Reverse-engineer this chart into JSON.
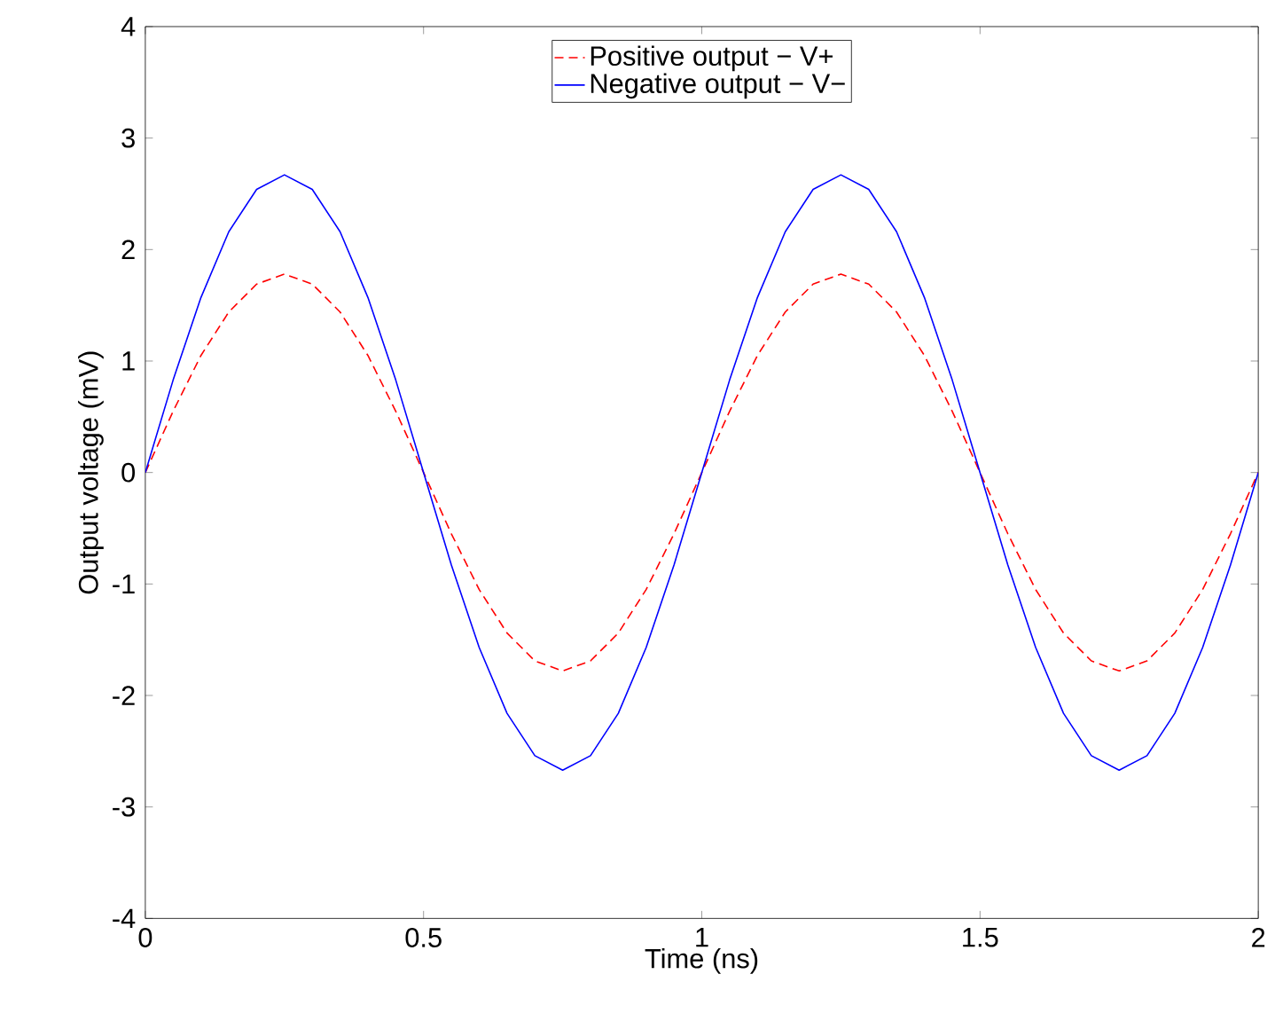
{
  "chart_data": {
    "type": "line",
    "xlabel": "Time (ns)",
    "ylabel": "Output voltage (mV)",
    "x": [
      0,
      0.05,
      0.1,
      0.15,
      0.2,
      0.25,
      0.3,
      0.35,
      0.4,
      0.45,
      0.5,
      0.55,
      0.6,
      0.65,
      0.7,
      0.75,
      0.8,
      0.85,
      0.9,
      0.95,
      1,
      1.05,
      1.1,
      1.15,
      1.2,
      1.25,
      1.3,
      1.35,
      1.4,
      1.45,
      1.5,
      1.55,
      1.6,
      1.65,
      1.7,
      1.75,
      1.8,
      1.85,
      1.9,
      1.95,
      2
    ],
    "series": [
      {
        "name": "Positive output − V+",
        "color": "#ff0000",
        "line_style": "dashed",
        "values": [
          0,
          0.55,
          1.05,
          1.44,
          1.69,
          1.78,
          1.69,
          1.44,
          1.05,
          0.55,
          0,
          -0.55,
          -1.05,
          -1.44,
          -1.69,
          -1.78,
          -1.69,
          -1.44,
          -1.05,
          -0.55,
          0,
          0.55,
          1.05,
          1.44,
          1.69,
          1.78,
          1.69,
          1.44,
          1.05,
          0.55,
          0,
          -0.55,
          -1.05,
          -1.44,
          -1.69,
          -1.78,
          -1.69,
          -1.44,
          -1.05,
          -0.55,
          0
        ]
      },
      {
        "name": "Negative output − V−",
        "color": "#0000ff",
        "line_style": "solid",
        "values": [
          0,
          0.83,
          1.57,
          2.16,
          2.54,
          2.67,
          2.54,
          2.16,
          1.57,
          0.83,
          0,
          -0.83,
          -1.57,
          -2.16,
          -2.54,
          -2.67,
          -2.54,
          -2.16,
          -1.57,
          -0.83,
          0,
          0.83,
          1.57,
          2.16,
          2.54,
          2.67,
          2.54,
          2.16,
          1.57,
          0.83,
          0,
          -0.83,
          -1.57,
          -2.16,
          -2.54,
          -2.67,
          -2.54,
          -2.16,
          -1.57,
          -0.83,
          0
        ]
      }
    ],
    "xlim": [
      0,
      2
    ],
    "xticks": [
      0,
      0.5,
      1,
      1.5,
      2
    ],
    "ylim": [
      -4,
      4
    ],
    "yticks": [
      -4,
      -3,
      -2,
      -1,
      0,
      1,
      2,
      3,
      4
    ],
    "legend": "top"
  }
}
